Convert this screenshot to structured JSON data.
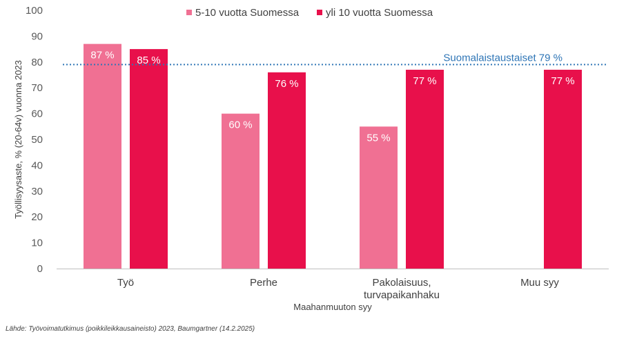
{
  "chart_data": {
    "type": "bar",
    "categories": [
      [
        "Työ"
      ],
      [
        "Perhe"
      ],
      [
        "Pakolaisuus,",
        "turvapaikanhaku"
      ],
      [
        "Muu syy"
      ]
    ],
    "series": [
      {
        "name": "5-10 vuotta Suomessa",
        "color": "#F07093",
        "values": [
          87,
          60,
          55,
          null
        ],
        "labels": [
          "87 %",
          "60 %",
          "55 %",
          ""
        ]
      },
      {
        "name": "yli 10 vuotta Suomessa",
        "color": "#E8104B",
        "values": [
          85,
          76,
          77,
          77
        ],
        "labels": [
          "85 %",
          "76 %",
          "77 %",
          "77 %"
        ]
      }
    ],
    "ylabel": "Työllisyysaste, % (20-64v) vuonna 2023",
    "xlabel": "Maahanmuuton syy",
    "ylim": [
      0,
      100
    ],
    "yticks": [
      0,
      10,
      20,
      30,
      40,
      50,
      60,
      70,
      80,
      90,
      100
    ],
    "reference_line": {
      "value": 79,
      "label": "Suomalaistaustaiset 79 %",
      "color": "#2E75B6"
    },
    "legend_position": "top",
    "grid": false
  },
  "source": "Lähde: Työvoimatutkimus (poikkileikkausaineisto) 2023, Baumgartner  (14.2.2025)"
}
